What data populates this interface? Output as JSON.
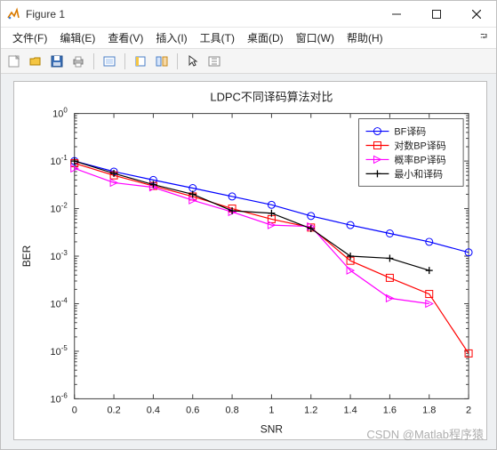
{
  "window": {
    "title": "Figure 1"
  },
  "menubar": {
    "items": [
      "文件(F)",
      "编辑(E)",
      "查看(V)",
      "插入(I)",
      "工具(T)",
      "桌面(D)",
      "窗口(W)",
      "帮助(H)"
    ]
  },
  "chart": {
    "type": "line-log-y",
    "title": "LDPC不同译码算法对比",
    "title_fontsize": 13,
    "xlabel": "SNR",
    "ylabel": "BER",
    "label_fontsize": 12,
    "tick_fontsize": 11,
    "background_color": "#ffffff",
    "axis_color": "#404040",
    "xlim": [
      0,
      2
    ],
    "xtick_step": 0.2,
    "ylim_exp": [
      -6,
      0
    ],
    "ytick_exp_step": 1,
    "x_values": [
      0.0,
      0.2,
      0.4,
      0.6,
      0.8,
      1.0,
      1.2,
      1.4,
      1.6,
      1.8,
      2.0
    ],
    "series": [
      {
        "name": "BF译码",
        "color": "#0000ff",
        "marker": "circle",
        "linewidth": 1.2,
        "y": [
          0.1,
          0.06,
          0.04,
          0.027,
          0.018,
          0.012,
          0.007,
          0.0045,
          0.003,
          0.002,
          0.0012
        ]
      },
      {
        "name": "对数BP译码",
        "color": "#ff0000",
        "marker": "square",
        "linewidth": 1.2,
        "y": [
          0.09,
          0.05,
          0.03,
          0.018,
          0.01,
          0.006,
          0.004,
          0.0008,
          0.00035,
          0.00016,
          9e-06
        ]
      },
      {
        "name": "概率BP译码",
        "color": "#ff00ff",
        "marker": "triangle-right",
        "linewidth": 1.2,
        "y": [
          0.07,
          0.035,
          0.028,
          0.015,
          0.0085,
          0.0045,
          0.0042,
          0.0005,
          0.00013,
          0.0001,
          null
        ]
      },
      {
        "name": "最小和译码",
        "color": "#000000",
        "marker": "plus",
        "linewidth": 1.2,
        "y": [
          0.1,
          0.055,
          0.032,
          0.02,
          0.009,
          0.008,
          0.0038,
          0.001,
          0.0009,
          0.0005,
          null
        ]
      }
    ],
    "legend": {
      "position": "top-right",
      "border_color": "#404040",
      "background": "#ffffff",
      "fontsize": 11
    }
  },
  "watermark": "CSDN @Matlab程序猿"
}
